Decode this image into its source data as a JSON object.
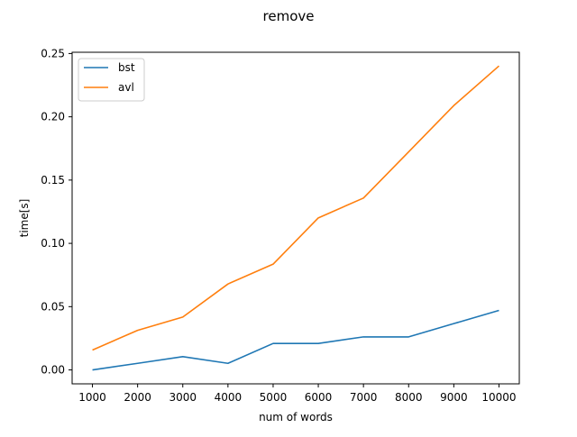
{
  "chart_data": {
    "type": "line",
    "title": "remove",
    "xlabel": "num of words",
    "ylabel": "time[s]",
    "x": [
      1000,
      2000,
      3000,
      4000,
      5000,
      6000,
      7000,
      8000,
      9000,
      10000
    ],
    "xticks": [
      "1000",
      "2000",
      "3000",
      "4000",
      "5000",
      "6000",
      "7000",
      "8000",
      "9000",
      "10000"
    ],
    "yticks": [
      "0.00",
      "0.05",
      "0.10",
      "0.15",
      "0.20",
      "0.25"
    ],
    "ylim": [
      -0.011,
      0.251
    ],
    "xlim": [
      550,
      10450
    ],
    "grid": false,
    "legend_position": "upper-left",
    "series": [
      {
        "name": "bst",
        "color": "#1f77b4",
        "values": [
          0.0,
          0.0052,
          0.0105,
          0.0052,
          0.0209,
          0.0209,
          0.0261,
          0.0261,
          0.0366,
          0.047
        ]
      },
      {
        "name": "avl",
        "color": "#ff7f0e",
        "values": [
          0.0157,
          0.0313,
          0.0418,
          0.0679,
          0.0836,
          0.1201,
          0.1358,
          0.1723,
          0.2089,
          0.2402
        ]
      }
    ]
  }
}
